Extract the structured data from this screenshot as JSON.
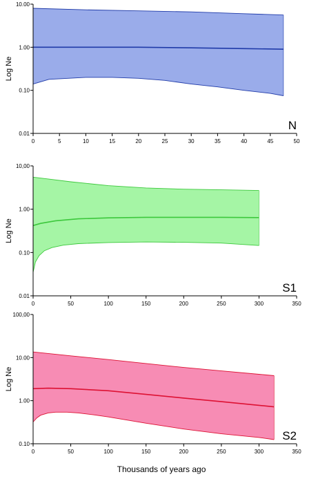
{
  "xlabel": "Thousands of years ago",
  "chart_data": [
    {
      "type": "area",
      "panel_label": "N",
      "ylabel": "Log Ne",
      "yscale": "log",
      "ylim": [
        0.01,
        10
      ],
      "ytick_labels": [
        "0.01",
        "0.10",
        "1.00",
        "10.00"
      ],
      "yticks": [
        0.01,
        0.1,
        1,
        10
      ],
      "xlim": [
        0,
        50
      ],
      "xticks": [
        0,
        5,
        10,
        15,
        20,
        25,
        30,
        35,
        40,
        45,
        50
      ],
      "colors": {
        "fill": "#9aacea",
        "line": "#1f3aa8"
      },
      "median": {
        "x": [
          0,
          10,
          20,
          30,
          40,
          47.5
        ],
        "y": [
          1.0,
          1.0,
          1.0,
          0.97,
          0.93,
          0.9
        ]
      },
      "upper": {
        "x": [
          0,
          10,
          20,
          30,
          40,
          47.5
        ],
        "y": [
          8.0,
          7.4,
          7.0,
          6.6,
          6.0,
          5.6
        ]
      },
      "lower": {
        "x": [
          0,
          3,
          10,
          15,
          20,
          25,
          30,
          35,
          40,
          45,
          47.5
        ],
        "y": [
          0.14,
          0.18,
          0.2,
          0.2,
          0.19,
          0.17,
          0.14,
          0.12,
          0.1,
          0.085,
          0.075
        ]
      },
      "grid": false
    },
    {
      "type": "area",
      "panel_label": "S1",
      "ylabel": "Log Ne",
      "yscale": "log",
      "ylim": [
        0.01,
        10
      ],
      "ytick_labels": [
        "0.01",
        "0.10",
        "1.00",
        "10,00"
      ],
      "yticks": [
        0.01,
        0.1,
        1,
        10
      ],
      "xlim": [
        0,
        350
      ],
      "xticks": [
        0,
        50,
        100,
        150,
        200,
        250,
        300,
        350
      ],
      "colors": {
        "fill": "#a5f5a5",
        "line": "#3cc83c"
      },
      "median": {
        "x": [
          0,
          10,
          30,
          60,
          100,
          150,
          200,
          250,
          300
        ],
        "y": [
          0.42,
          0.47,
          0.54,
          0.6,
          0.63,
          0.65,
          0.65,
          0.65,
          0.64
        ]
      },
      "upper": {
        "x": [
          0,
          20,
          50,
          100,
          150,
          200,
          250,
          300
        ],
        "y": [
          5.5,
          5.0,
          4.3,
          3.5,
          3.1,
          2.9,
          2.8,
          2.7
        ]
      },
      "lower": {
        "x": [
          0,
          3,
          8,
          15,
          25,
          40,
          60,
          100,
          150,
          200,
          250,
          300
        ],
        "y": [
          0.035,
          0.06,
          0.085,
          0.11,
          0.13,
          0.148,
          0.16,
          0.17,
          0.175,
          0.172,
          0.165,
          0.145
        ]
      },
      "grid": false
    },
    {
      "type": "area",
      "panel_label": "S2",
      "ylabel": "Log Ne",
      "yscale": "log",
      "ylim": [
        0.1,
        100
      ],
      "ytick_labels": [
        "0.10",
        "1.00",
        "10.00",
        "100,00"
      ],
      "yticks": [
        0.1,
        1,
        10,
        100
      ],
      "xlim": [
        0,
        350
      ],
      "xticks": [
        0,
        50,
        100,
        150,
        200,
        250,
        300,
        350
      ],
      "colors": {
        "fill": "#f78cb4",
        "line": "#dd1133"
      },
      "median": {
        "x": [
          0,
          20,
          50,
          100,
          150,
          200,
          250,
          300,
          320
        ],
        "y": [
          1.9,
          1.95,
          1.9,
          1.7,
          1.4,
          1.15,
          0.95,
          0.78,
          0.72
        ]
      },
      "upper": {
        "x": [
          0,
          50,
          100,
          150,
          200,
          250,
          300,
          320
        ],
        "y": [
          13.5,
          11.0,
          9.0,
          7.3,
          5.9,
          4.9,
          4.1,
          3.8
        ]
      },
      "lower": {
        "x": [
          0,
          5,
          10,
          20,
          30,
          45,
          60,
          80,
          100,
          150,
          200,
          250,
          300,
          320
        ],
        "y": [
          0.32,
          0.4,
          0.46,
          0.52,
          0.54,
          0.54,
          0.52,
          0.47,
          0.42,
          0.3,
          0.22,
          0.17,
          0.14,
          0.125
        ]
      },
      "grid": false
    }
  ]
}
